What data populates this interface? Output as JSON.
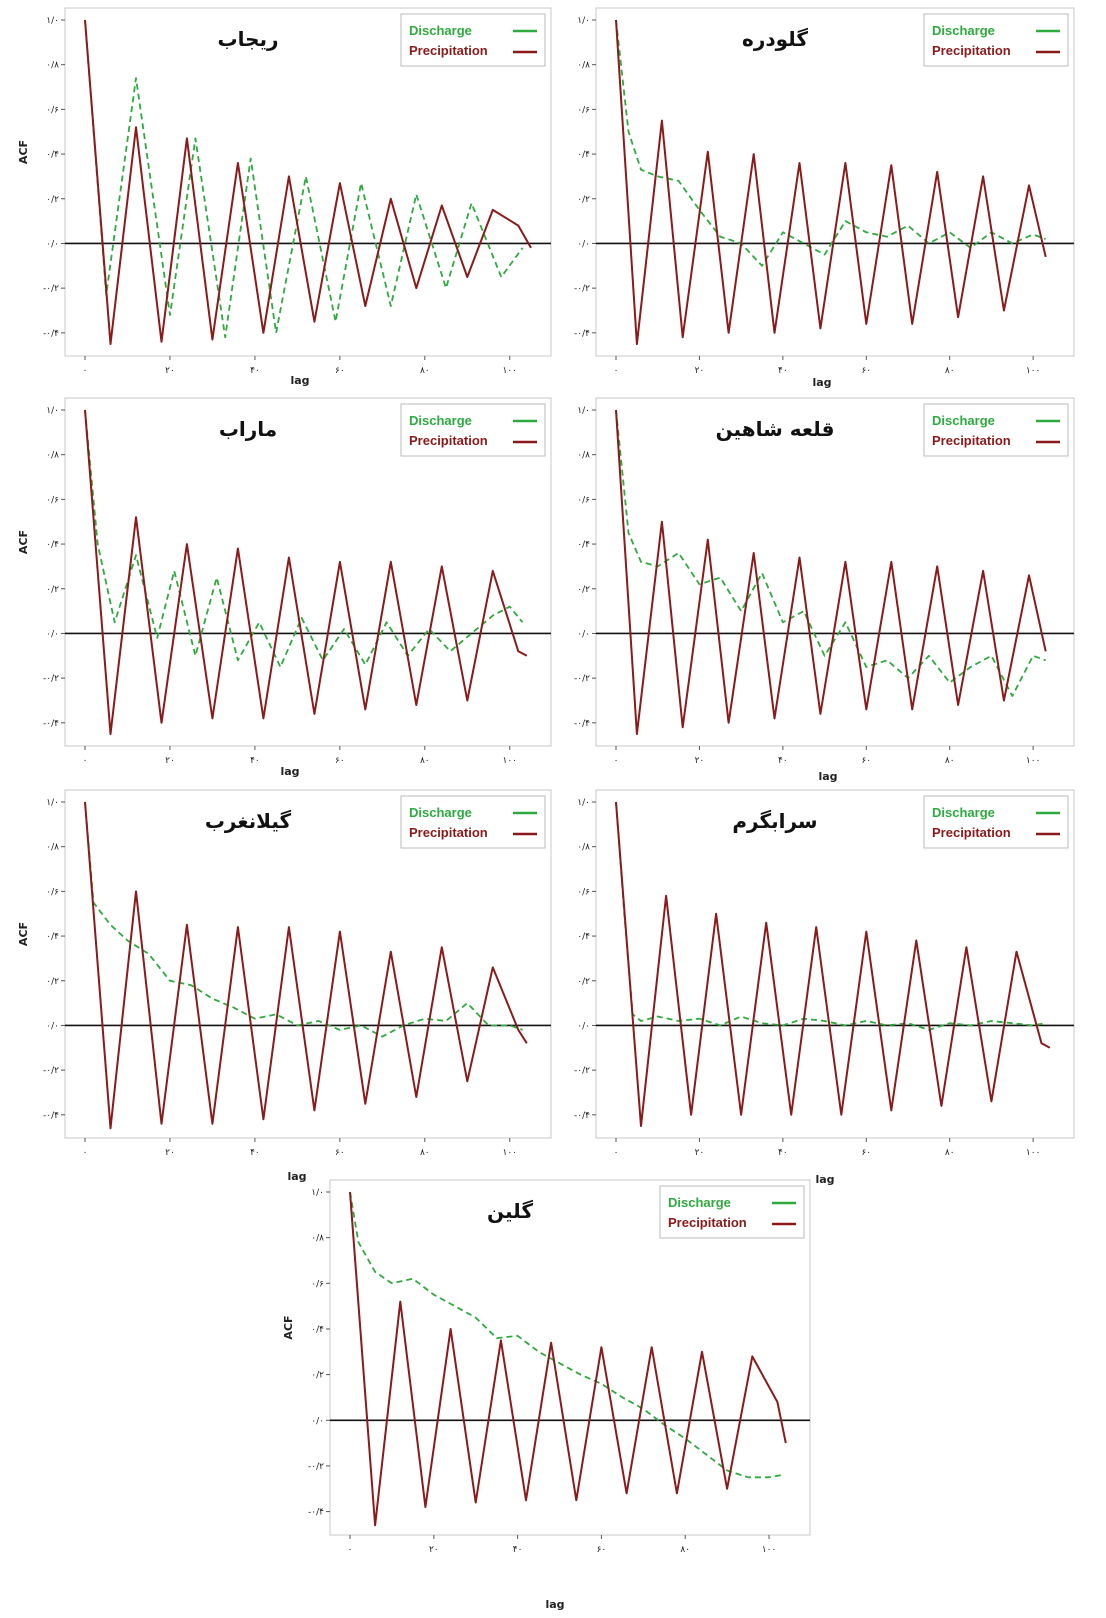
{
  "colors": {
    "discharge": "#2eaa3e",
    "precipitation": "#8b1a1a",
    "zero_line": "#111111",
    "frame": "#c8c8c8"
  },
  "y_tick_labels": [
    "۱/۰",
    "۰/۸",
    "۰/۶",
    "۰/۴",
    "۰/۲",
    "۰/۰",
    "-۰/۲",
    "-۰/۴"
  ],
  "x_tick_labels": [
    "۰",
    "۲۰",
    "۴۰",
    "۶۰",
    "۸۰",
    "۱۰۰"
  ],
  "ylabel": "ACF",
  "xlabel": "lag",
  "legend": {
    "discharge": "Discharge",
    "precipitation": "Precipitation"
  },
  "chart_data": [
    {
      "type": "line",
      "title": "ریجاب",
      "xlim": [
        0,
        105
      ],
      "ylim": [
        -0.45,
        1.0
      ],
      "grid": false,
      "legend": "top-right",
      "series": [
        {
          "name": "Discharge",
          "style": "dashed",
          "x": [
            0,
            5,
            12,
            20,
            26,
            33,
            39,
            45,
            52,
            59,
            65,
            72,
            78,
            85,
            91,
            98,
            103
          ],
          "y": [
            1.0,
            -0.23,
            0.74,
            -0.32,
            0.47,
            -0.42,
            0.38,
            -0.4,
            0.3,
            -0.35,
            0.27,
            -0.28,
            0.22,
            -0.2,
            0.18,
            -0.15,
            -0.02
          ]
        },
        {
          "name": "Precipitation",
          "style": "solid",
          "x": [
            0,
            6,
            12,
            18,
            24,
            30,
            36,
            42,
            48,
            54,
            60,
            66,
            72,
            78,
            84,
            90,
            96,
            102,
            105
          ],
          "y": [
            1.0,
            -0.45,
            0.52,
            -0.44,
            0.47,
            -0.43,
            0.36,
            -0.4,
            0.3,
            -0.35,
            0.27,
            -0.28,
            0.2,
            -0.2,
            0.17,
            -0.15,
            0.15,
            0.08,
            -0.02
          ]
        }
      ]
    },
    {
      "type": "line",
      "title": "گلودره",
      "xlim": [
        0,
        105
      ],
      "ylim": [
        -0.45,
        1.0
      ],
      "grid": false,
      "legend": "top-right",
      "series": [
        {
          "name": "Discharge",
          "style": "dashed",
          "x": [
            0,
            3,
            6,
            10,
            15,
            20,
            25,
            30,
            35,
            40,
            45,
            50,
            55,
            60,
            65,
            70,
            75,
            80,
            85,
            90,
            95,
            100,
            103
          ],
          "y": [
            1.0,
            0.5,
            0.33,
            0.3,
            0.28,
            0.15,
            0.03,
            0.0,
            -0.1,
            0.05,
            0.0,
            -0.05,
            0.1,
            0.05,
            0.03,
            0.08,
            0.0,
            0.05,
            -0.02,
            0.05,
            0.0,
            0.04,
            0.02
          ]
        },
        {
          "name": "Precipitation",
          "style": "solid",
          "x": [
            0,
            5,
            11,
            16,
            22,
            27,
            33,
            38,
            44,
            49,
            55,
            60,
            66,
            71,
            77,
            82,
            88,
            93,
            99,
            103
          ],
          "y": [
            1.0,
            -0.45,
            0.55,
            -0.42,
            0.41,
            -0.4,
            0.4,
            -0.4,
            0.36,
            -0.38,
            0.36,
            -0.36,
            0.35,
            -0.36,
            0.32,
            -0.33,
            0.3,
            -0.3,
            0.26,
            -0.06
          ]
        }
      ]
    },
    {
      "type": "line",
      "title": "ماراب",
      "xlim": [
        0,
        105
      ],
      "ylim": [
        -0.45,
        1.0
      ],
      "grid": false,
      "legend": "top-right",
      "series": [
        {
          "name": "Discharge",
          "style": "dashed",
          "x": [
            0,
            3,
            7,
            12,
            17,
            21,
            26,
            31,
            36,
            41,
            46,
            51,
            56,
            61,
            66,
            71,
            76,
            81,
            86,
            91,
            96,
            100,
            103
          ],
          "y": [
            1.0,
            0.4,
            0.05,
            0.35,
            -0.02,
            0.28,
            -0.1,
            0.25,
            -0.12,
            0.05,
            -0.15,
            0.07,
            -0.12,
            0.02,
            -0.14,
            0.05,
            -0.1,
            0.02,
            -0.08,
            0.0,
            0.08,
            0.12,
            0.05
          ]
        },
        {
          "name": "Precipitation",
          "style": "solid",
          "x": [
            0,
            6,
            12,
            18,
            24,
            30,
            36,
            42,
            48,
            54,
            60,
            66,
            72,
            78,
            84,
            90,
            96,
            102,
            104
          ],
          "y": [
            1.0,
            -0.45,
            0.52,
            -0.4,
            0.4,
            -0.38,
            0.38,
            -0.38,
            0.34,
            -0.36,
            0.32,
            -0.34,
            0.32,
            -0.32,
            0.3,
            -0.3,
            0.28,
            -0.08,
            -0.1
          ]
        }
      ]
    },
    {
      "type": "line",
      "title": "قلعه شاهین",
      "xlim": [
        0,
        105
      ],
      "ylim": [
        -0.45,
        1.0
      ],
      "grid": false,
      "legend": "top-right",
      "series": [
        {
          "name": "Discharge",
          "style": "dashed",
          "x": [
            0,
            3,
            6,
            10,
            15,
            20,
            25,
            30,
            35,
            40,
            45,
            50,
            55,
            60,
            65,
            70,
            75,
            80,
            85,
            90,
            95,
            100,
            103
          ],
          "y": [
            1.0,
            0.45,
            0.32,
            0.3,
            0.36,
            0.22,
            0.25,
            0.1,
            0.27,
            0.05,
            0.1,
            -0.1,
            0.05,
            -0.15,
            -0.12,
            -0.2,
            -0.1,
            -0.22,
            -0.15,
            -0.1,
            -0.28,
            -0.1,
            -0.12
          ]
        },
        {
          "name": "Precipitation",
          "style": "solid",
          "x": [
            0,
            5,
            11,
            16,
            22,
            27,
            33,
            38,
            44,
            49,
            55,
            60,
            66,
            71,
            77,
            82,
            88,
            93,
            99,
            103
          ],
          "y": [
            1.0,
            -0.45,
            0.5,
            -0.42,
            0.42,
            -0.4,
            0.36,
            -0.38,
            0.34,
            -0.36,
            0.32,
            -0.34,
            0.32,
            -0.34,
            0.3,
            -0.32,
            0.28,
            -0.3,
            0.26,
            -0.08
          ]
        }
      ]
    },
    {
      "type": "line",
      "title": "گیلانغرب",
      "xlim": [
        0,
        105
      ],
      "ylim": [
        -0.45,
        1.0
      ],
      "grid": false,
      "legend": "top-right",
      "series": [
        {
          "name": "Discharge",
          "style": "dashed",
          "x": [
            0,
            2,
            6,
            10,
            15,
            20,
            25,
            30,
            35,
            40,
            45,
            50,
            55,
            60,
            65,
            70,
            75,
            80,
            85,
            90,
            95,
            100,
            103
          ],
          "y": [
            1.0,
            0.55,
            0.45,
            0.38,
            0.32,
            0.2,
            0.18,
            0.12,
            0.08,
            0.03,
            0.05,
            0.0,
            0.02,
            -0.02,
            0.0,
            -0.05,
            0.0,
            0.03,
            0.02,
            0.1,
            0.0,
            0.0,
            -0.02
          ]
        },
        {
          "name": "Precipitation",
          "style": "solid",
          "x": [
            0,
            6,
            12,
            18,
            24,
            30,
            36,
            42,
            48,
            54,
            60,
            66,
            72,
            78,
            84,
            90,
            96,
            102,
            104
          ],
          "y": [
            1.0,
            -0.46,
            0.6,
            -0.44,
            0.45,
            -0.44,
            0.44,
            -0.42,
            0.44,
            -0.38,
            0.42,
            -0.35,
            0.33,
            -0.32,
            0.35,
            -0.25,
            0.26,
            -0.02,
            -0.08
          ]
        }
      ]
    },
    {
      "type": "line",
      "title": "سرابگرم",
      "xlim": [
        0,
        105
      ],
      "ylim": [
        -0.45,
        1.0
      ],
      "grid": false,
      "legend": "top-right",
      "series": [
        {
          "name": "Discharge",
          "style": "dashed",
          "x": [
            0,
            2,
            4,
            6,
            10,
            15,
            20,
            25,
            30,
            35,
            40,
            45,
            50,
            55,
            60,
            65,
            70,
            75,
            80,
            85,
            90,
            95,
            100,
            103
          ],
          "y": [
            1.0,
            0.5,
            0.05,
            0.02,
            0.04,
            0.02,
            0.03,
            0.0,
            0.04,
            0.01,
            0.0,
            0.03,
            0.02,
            0.0,
            0.02,
            0.0,
            0.01,
            -0.02,
            0.01,
            0.0,
            0.02,
            0.01,
            0.0,
            0.01
          ]
        },
        {
          "name": "Precipitation",
          "style": "solid",
          "x": [
            0,
            6,
            12,
            18,
            24,
            30,
            36,
            42,
            48,
            54,
            60,
            66,
            72,
            78,
            84,
            90,
            96,
            102,
            104
          ],
          "y": [
            1.0,
            -0.45,
            0.58,
            -0.4,
            0.5,
            -0.4,
            0.46,
            -0.4,
            0.44,
            -0.4,
            0.42,
            -0.38,
            0.38,
            -0.36,
            0.35,
            -0.34,
            0.33,
            -0.08,
            -0.1
          ]
        }
      ]
    },
    {
      "type": "line",
      "title": "گلین",
      "xlim": [
        0,
        105
      ],
      "ylim": [
        -0.45,
        1.0
      ],
      "grid": false,
      "legend": "top-right",
      "series": [
        {
          "name": "Discharge",
          "style": "dashed",
          "x": [
            0,
            2,
            6,
            10,
            15,
            20,
            25,
            30,
            35,
            40,
            45,
            50,
            55,
            60,
            65,
            70,
            75,
            80,
            85,
            90,
            95,
            100,
            103
          ],
          "y": [
            1.0,
            0.78,
            0.65,
            0.6,
            0.62,
            0.55,
            0.5,
            0.45,
            0.36,
            0.37,
            0.3,
            0.25,
            0.2,
            0.16,
            0.1,
            0.05,
            -0.02,
            -0.08,
            -0.15,
            -0.22,
            -0.25,
            -0.25,
            -0.24
          ]
        },
        {
          "name": "Precipitation",
          "style": "solid",
          "x": [
            0,
            6,
            12,
            18,
            24,
            30,
            36,
            42,
            48,
            54,
            60,
            66,
            72,
            78,
            84,
            90,
            96,
            102,
            104
          ],
          "y": [
            1.0,
            -0.46,
            0.52,
            -0.38,
            0.4,
            -0.36,
            0.35,
            -0.35,
            0.34,
            -0.35,
            0.32,
            -0.32,
            0.32,
            -0.32,
            0.3,
            -0.3,
            0.28,
            0.08,
            -0.1
          ]
        }
      ]
    }
  ]
}
